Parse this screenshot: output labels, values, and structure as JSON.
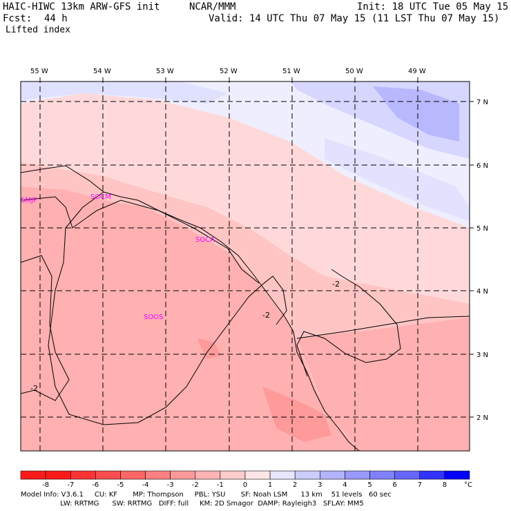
{
  "header": {
    "model": "HAIC-HIWC 13km ARW-GFS init",
    "org": "NCAR/MMM",
    "init": "Init: 18 UTC Tue 05 May 15",
    "fcst_label": "Fcst:",
    "fcst_value": "44 h",
    "valid": "Valid: 14 UTC Thu 07 May 15 (11 LST Thu 07 May 15)",
    "field": "Lifted index"
  },
  "map": {
    "lon_labels": [
      "55 W",
      "54 W",
      "53 W",
      "52 W",
      "51 W",
      "50 W",
      "49 W"
    ],
    "lat_labels": [
      "7 N",
      "6 N",
      "5 N",
      "4 N",
      "3 N",
      "2 N"
    ],
    "stations": [
      "SMJP",
      "SOCM",
      "SOCA",
      "SOOS"
    ],
    "contour_labels": [
      "-2",
      "-2",
      "-2"
    ]
  },
  "colorbar": {
    "unit": "°C",
    "tick_labels": [
      "-8",
      "-7",
      "-6",
      "-5",
      "-4",
      "-3",
      "-2",
      "-1",
      "0",
      "1",
      "2",
      "3",
      "4",
      "5",
      "6",
      "7",
      "8"
    ],
    "colors": [
      "#ff1a1a",
      "#ff3333",
      "#ff4d4d",
      "#ff6666",
      "#ff8080",
      "#ff9999",
      "#ffb3b3",
      "#ffcccc",
      "#ffe6e6",
      "#e6e6ff",
      "#ccccff",
      "#b3b3ff",
      "#9999ff",
      "#8080ff",
      "#6666ff",
      "#3333ff",
      "#0000ff"
    ]
  },
  "footer": {
    "line1": "Model Info: V3.6.1     CU: KF       MP: Thompson     PBL: YSU       SF: Noah LSM      13 km    51 levels   60 sec",
    "line2": "                  LW: RRTMG      SW: RRTMG   DIFF: full     KM: 2D Smagor  DAMP: Rayleigh3   SFLAY: MM5"
  }
}
